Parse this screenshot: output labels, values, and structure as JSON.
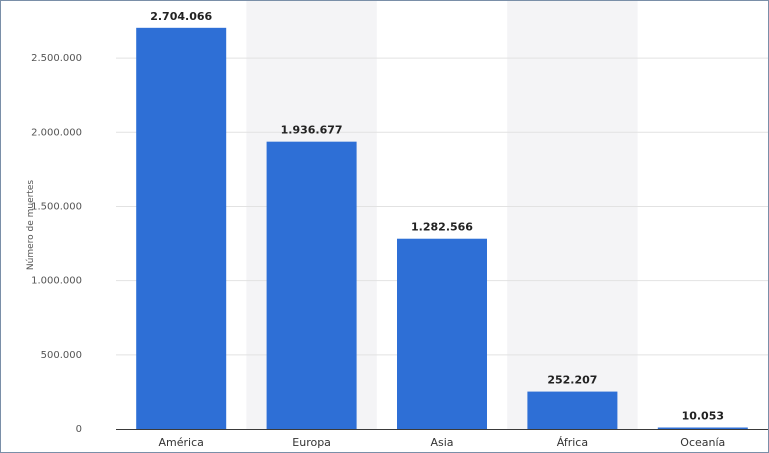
{
  "chart_data": {
    "type": "bar",
    "title": "",
    "xlabel": "",
    "ylabel": "Número de muertes",
    "categories": [
      "América",
      "Europa",
      "Asia",
      "África",
      "Oceanía"
    ],
    "values": [
      2704066,
      1936677,
      1282566,
      252207,
      10053
    ],
    "value_labels": [
      "2.704.066",
      "1.936.677",
      "1.282.566",
      "252.207",
      "10.053"
    ],
    "ylim": [
      0,
      2750000
    ],
    "yticks": [
      0,
      500000,
      1000000,
      1500000,
      2000000,
      2500000
    ],
    "ytick_labels": [
      "0",
      "500.000",
      "1.000.000",
      "1.500.000",
      "2.000.000",
      "2.500.000"
    ],
    "grid": true,
    "alternating_column_shading": true,
    "colors": {
      "bar": "#2e6fd6",
      "band": "#f4f4f6",
      "grid": "#e2e2e2",
      "axis": "#3a3a3a",
      "frame": "#7a8fa8"
    }
  }
}
